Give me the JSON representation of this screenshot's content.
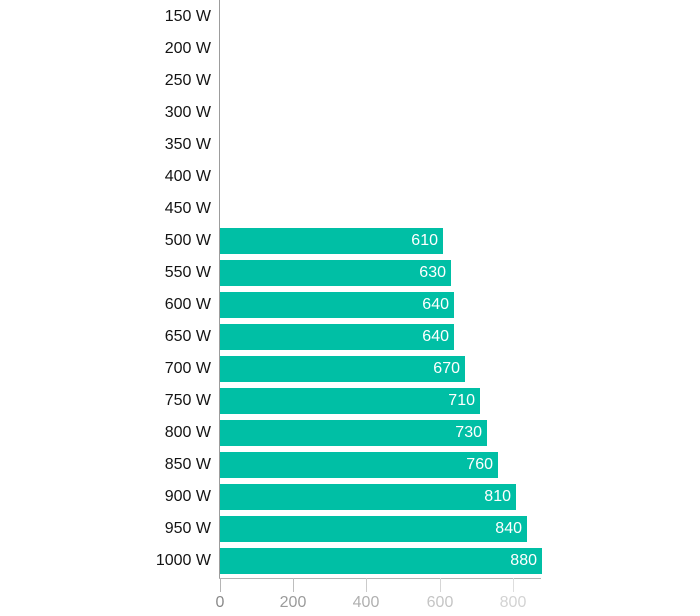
{
  "chart_data": {
    "type": "bar",
    "orientation": "horizontal",
    "title": "",
    "xlabel": "",
    "ylabel": "",
    "grid": false,
    "legend": null,
    "xlim": [
      0,
      880
    ],
    "categories": [
      "150 W",
      "200 W",
      "250 W",
      "300 W",
      "350 W",
      "400 W",
      "450 W",
      "500 W",
      "550 W",
      "600 W",
      "650 W",
      "700 W",
      "750 W",
      "800 W",
      "850 W",
      "900 W",
      "950 W",
      "1000 W"
    ],
    "values": [
      0,
      0,
      0,
      0,
      0,
      0,
      0,
      610,
      630,
      640,
      640,
      670,
      710,
      730,
      760,
      810,
      840,
      880
    ],
    "bar_labels": [
      "",
      "",
      "",
      "",
      "",
      "",
      "",
      "610",
      "630",
      "640",
      "640",
      "670",
      "710",
      "730",
      "760",
      "810",
      "840",
      "880"
    ],
    "x_ticks": [
      {
        "value": 0,
        "label": "0",
        "label_color": "#8a8a8a",
        "tick_color": "#b5b5b5"
      },
      {
        "value": 200,
        "label": "200",
        "label_color": "#9b9b9b",
        "tick_color": "#bebebe"
      },
      {
        "value": 400,
        "label": "400",
        "label_color": "#b0b0b0",
        "tick_color": "#cbcbcb"
      },
      {
        "value": 600,
        "label": "600",
        "label_color": "#c5c5c5",
        "tick_color": "#d6d6d6"
      },
      {
        "value": 800,
        "label": "800",
        "label_color": "#d3d3d3",
        "tick_color": "#dedede"
      }
    ],
    "colors": {
      "bar": "#00bfa5",
      "bar_label": "#ffffff",
      "category_label": "#141414",
      "y_axis_line": "#9c9c9c",
      "x_axis_line": "#b3b3b3",
      "background": "#ffffff"
    }
  }
}
